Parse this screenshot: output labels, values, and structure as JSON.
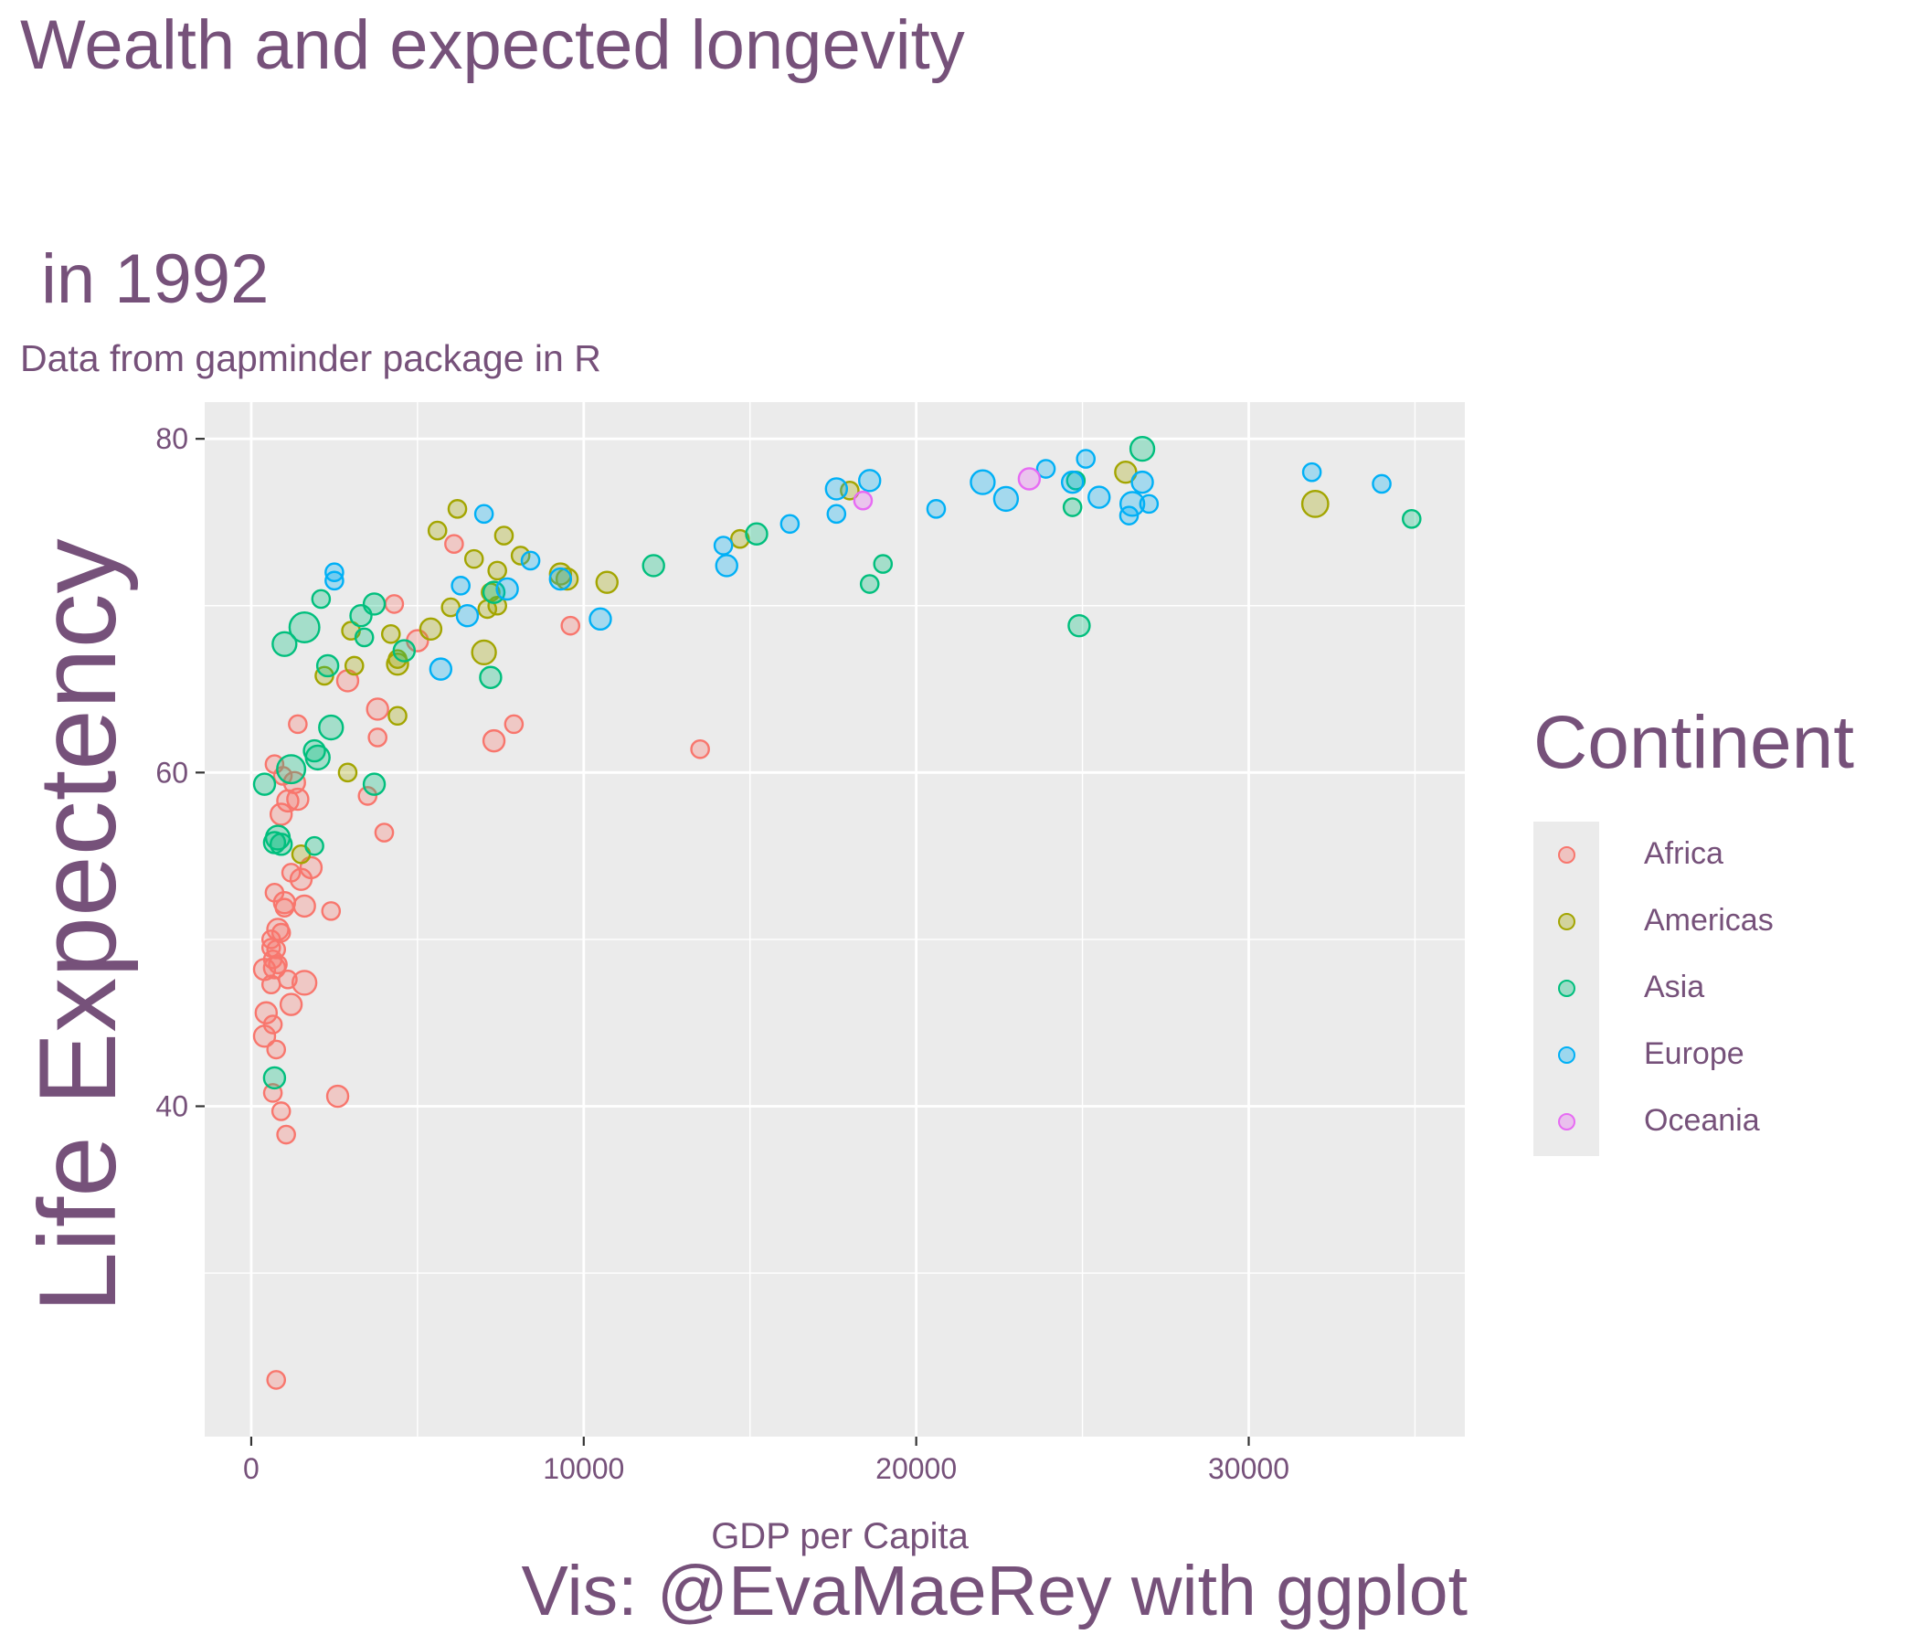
{
  "title_line1": "Wealth and expected longevity",
  "title_line2": "in 1992",
  "subtitle": "Data from gapminder package in R",
  "caption": "Vis: @EvaMaeRey with ggplot",
  "legend": {
    "title": "Continent",
    "items": [
      {
        "label": "Africa",
        "color": "#F8766D"
      },
      {
        "label": "Americas",
        "color": "#A3A500"
      },
      {
        "label": "Asia",
        "color": "#00BF7D"
      },
      {
        "label": "Europe",
        "color": "#00B0F6"
      },
      {
        "label": "Oceania",
        "color": "#E76BF3"
      }
    ]
  },
  "chart_data": {
    "type": "scatter",
    "title": "Wealth and expected longevity\n\n in 1992",
    "subtitle": "Data from gapminder package in R",
    "xlabel": "GDP per Capita",
    "ylabel": "Life Expectency",
    "xlim": [
      -1400,
      36500
    ],
    "ylim": [
      20.2,
      82.2
    ],
    "x_ticks": [
      0,
      10000,
      20000,
      30000
    ],
    "x_tick_labels": [
      "0",
      "10000",
      "20000",
      "30000"
    ],
    "y_ticks": [
      40,
      60,
      80
    ],
    "y_tick_labels": [
      "40",
      "60",
      "80"
    ],
    "grid": true,
    "legend_position": "right",
    "size_encoding": "population",
    "series": [
      {
        "name": "Africa",
        "color": "#F8766D",
        "points": [
          [
            6100,
            73.7,
            1
          ],
          [
            4300,
            70.1,
            1
          ],
          [
            5000,
            67.9,
            2
          ],
          [
            9600,
            68.8,
            1
          ],
          [
            2900,
            65.5,
            2
          ],
          [
            3800,
            63.8,
            2
          ],
          [
            3800,
            62.1,
            1
          ],
          [
            7300,
            61.9,
            2
          ],
          [
            7900,
            62.9,
            1
          ],
          [
            1400,
            62.9,
            1
          ],
          [
            13500,
            61.4,
            1
          ],
          [
            700,
            60.5,
            1
          ],
          [
            950,
            59.8,
            1
          ],
          [
            1300,
            59.4,
            2
          ],
          [
            1100,
            58.3,
            2
          ],
          [
            1400,
            58.4,
            2
          ],
          [
            900,
            57.5,
            2
          ],
          [
            3500,
            58.6,
            1
          ],
          [
            4000,
            56.4,
            1
          ],
          [
            1200,
            54.0,
            1
          ],
          [
            1500,
            53.6,
            2
          ],
          [
            1800,
            54.3,
            2
          ],
          [
            700,
            52.8,
            1
          ],
          [
            1000,
            52.2,
            2
          ],
          [
            1600,
            52.0,
            2
          ],
          [
            1000,
            51.9,
            1
          ],
          [
            2400,
            51.7,
            1
          ],
          [
            600,
            50.0,
            1
          ],
          [
            800,
            50.6,
            2
          ],
          [
            900,
            50.4,
            1
          ],
          [
            600,
            49.5,
            1
          ],
          [
            750,
            49.4,
            1
          ],
          [
            650,
            48.8,
            1
          ],
          [
            800,
            48.5,
            1
          ],
          [
            700,
            48.3,
            2
          ],
          [
            400,
            48.2,
            2
          ],
          [
            1100,
            47.6,
            1
          ],
          [
            1600,
            47.4,
            3
          ],
          [
            600,
            47.3,
            1
          ],
          [
            1200,
            46.1,
            2
          ],
          [
            450,
            45.6,
            2
          ],
          [
            650,
            44.9,
            1
          ],
          [
            400,
            44.2,
            2
          ],
          [
            750,
            43.4,
            1
          ],
          [
            650,
            40.8,
            1
          ],
          [
            2600,
            40.6,
            2
          ],
          [
            900,
            39.7,
            1
          ],
          [
            1050,
            38.3,
            1
          ],
          [
            750,
            23.6,
            1
          ]
        ]
      },
      {
        "name": "Americas",
        "color": "#A3A500",
        "points": [
          [
            6200,
            75.8,
            1
          ],
          [
            5600,
            74.5,
            1
          ],
          [
            6700,
            72.8,
            1
          ],
          [
            7600,
            74.2,
            1
          ],
          [
            8100,
            73.0,
            1
          ],
          [
            7400,
            72.1,
            1
          ],
          [
            9300,
            71.9,
            2
          ],
          [
            9500,
            71.6,
            2
          ],
          [
            10700,
            71.4,
            2
          ],
          [
            7200,
            70.8,
            1
          ],
          [
            7400,
            70.0,
            1
          ],
          [
            7100,
            69.8,
            1
          ],
          [
            6000,
            69.9,
            1
          ],
          [
            5400,
            68.6,
            2
          ],
          [
            3000,
            68.5,
            1
          ],
          [
            4200,
            68.3,
            1
          ],
          [
            7000,
            67.2,
            3
          ],
          [
            4400,
            66.8,
            1
          ],
          [
            4400,
            66.5,
            2
          ],
          [
            3100,
            66.4,
            1
          ],
          [
            2200,
            65.8,
            1
          ],
          [
            4400,
            63.4,
            1
          ],
          [
            2900,
            60.0,
            1
          ],
          [
            1500,
            55.1,
            1
          ],
          [
            14700,
            74.0,
            1
          ],
          [
            18000,
            76.9,
            1
          ],
          [
            26300,
            78.0,
            2
          ],
          [
            32000,
            76.1,
            4
          ]
        ]
      },
      {
        "name": "Asia",
        "color": "#00BF7D",
        "points": [
          [
            26800,
            79.4,
            3
          ],
          [
            24800,
            77.5,
            1
          ],
          [
            24700,
            75.9,
            1
          ],
          [
            34900,
            75.2,
            1
          ],
          [
            15200,
            74.3,
            2
          ],
          [
            12100,
            72.4,
            2
          ],
          [
            19000,
            72.5,
            1
          ],
          [
            18600,
            71.3,
            1
          ],
          [
            24900,
            68.8,
            2
          ],
          [
            7300,
            70.8,
            2
          ],
          [
            3700,
            70.1,
            2
          ],
          [
            3300,
            69.4,
            2
          ],
          [
            2100,
            70.4,
            1
          ],
          [
            1600,
            68.7,
            6
          ],
          [
            1000,
            67.7,
            3
          ],
          [
            4600,
            67.3,
            2
          ],
          [
            2300,
            66.4,
            2
          ],
          [
            3400,
            68.1,
            1
          ],
          [
            7200,
            65.7,
            2
          ],
          [
            2400,
            62.7,
            3
          ],
          [
            1900,
            61.3,
            2
          ],
          [
            2000,
            60.9,
            3
          ],
          [
            1200,
            60.2,
            5
          ],
          [
            400,
            59.3,
            2
          ],
          [
            3700,
            59.3,
            2
          ],
          [
            800,
            56.1,
            3
          ],
          [
            700,
            55.8,
            2
          ],
          [
            900,
            55.7,
            2
          ],
          [
            1900,
            55.6,
            1
          ],
          [
            700,
            41.7,
            2
          ]
        ]
      },
      {
        "name": "Europe",
        "color": "#00B0F6",
        "points": [
          [
            2500,
            72.0,
            1
          ],
          [
            2500,
            71.5,
            1
          ],
          [
            7000,
            75.5,
            1
          ],
          [
            6300,
            71.2,
            1
          ],
          [
            7700,
            71.0,
            2
          ],
          [
            8400,
            72.7,
            1
          ],
          [
            9300,
            71.6,
            2
          ],
          [
            10500,
            69.2,
            2
          ],
          [
            6500,
            69.4,
            2
          ],
          [
            5700,
            66.2,
            2
          ],
          [
            14200,
            73.6,
            1
          ],
          [
            14300,
            72.4,
            2
          ],
          [
            16200,
            74.9,
            1
          ],
          [
            17600,
            77.0,
            2
          ],
          [
            17600,
            75.5,
            1
          ],
          [
            18600,
            77.5,
            2
          ],
          [
            20600,
            75.8,
            1
          ],
          [
            22000,
            77.4,
            3
          ],
          [
            22700,
            76.4,
            3
          ],
          [
            23900,
            78.2,
            1
          ],
          [
            24700,
            77.4,
            2
          ],
          [
            25100,
            78.8,
            1
          ],
          [
            25500,
            76.5,
            2
          ],
          [
            26500,
            76.1,
            3
          ],
          [
            26800,
            77.4,
            2
          ],
          [
            26400,
            75.4,
            1
          ],
          [
            27000,
            76.1,
            1
          ],
          [
            31900,
            78.0,
            1
          ],
          [
            34000,
            77.3,
            1
          ]
        ]
      },
      {
        "name": "Oceania",
        "color": "#E76BF3",
        "points": [
          [
            18400,
            76.3,
            1
          ],
          [
            23400,
            77.6,
            2
          ]
        ]
      }
    ]
  }
}
